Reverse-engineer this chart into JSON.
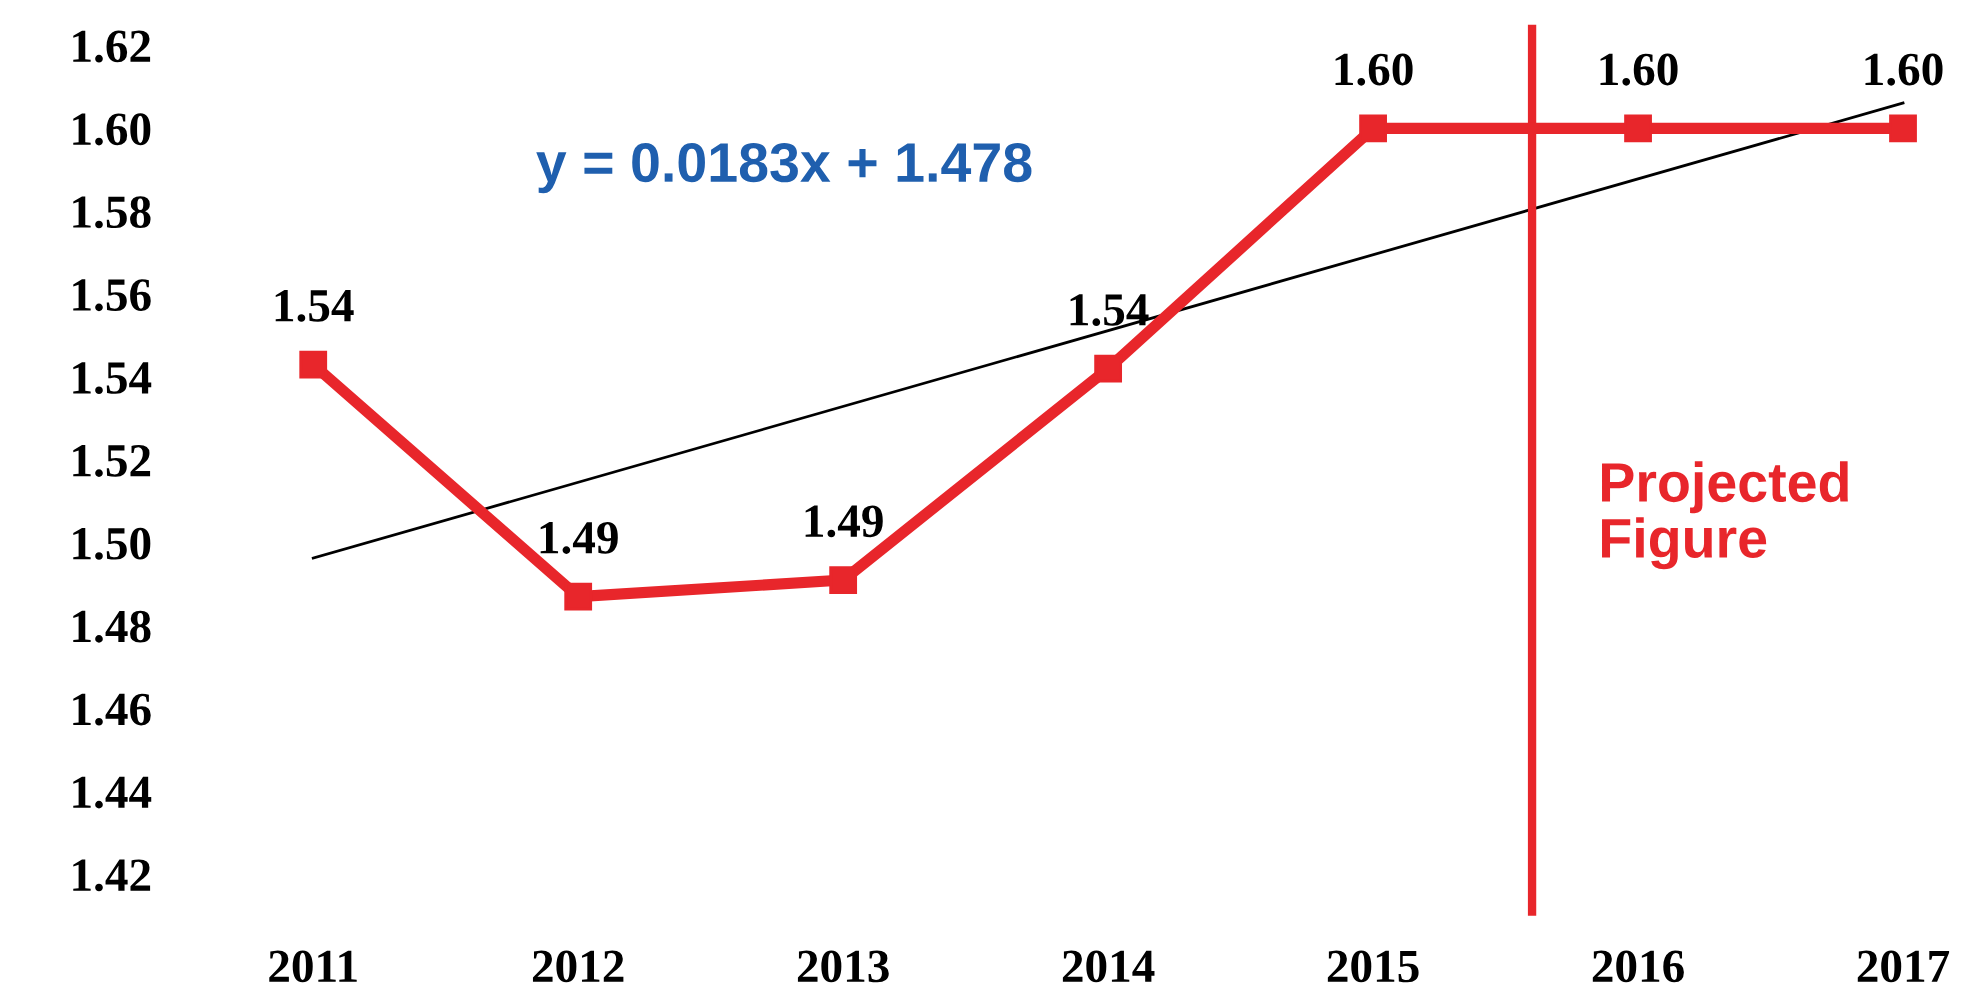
{
  "chart_data": {
    "type": "line",
    "x": [
      2011,
      2012,
      2013,
      2014,
      2015,
      2016,
      2017
    ],
    "series": [
      {
        "color": "#e8262b",
        "values": [
          1.543,
          1.487,
          1.491,
          1.542,
          1.6,
          1.6,
          1.6
        ],
        "value_labels": [
          "1.54",
          "1.49",
          "1.49",
          "1.54",
          "1.60",
          "1.60",
          "1.60"
        ],
        "marker": "square",
        "line_style": "solid"
      },
      {
        "color": "#000000",
        "x": [
          2011,
          2017
        ],
        "values": [
          1.4963,
          1.6061
        ],
        "marker": "none",
        "line_style": "solid"
      }
    ],
    "xlim": [
      2011,
      2017
    ],
    "xticks": [
      2011,
      2012,
      2013,
      2014,
      2015,
      2016,
      2017
    ],
    "ylim": [
      1.41,
      1.625
    ],
    "yticks": [
      {
        "value": 1.42,
        "label": "1.42"
      },
      {
        "value": 1.44,
        "label": "1.44"
      },
      {
        "value": 1.46,
        "label": "1.46"
      },
      {
        "value": 1.48,
        "label": "1.48"
      },
      {
        "value": 1.5,
        "label": "1.50"
      },
      {
        "value": 1.52,
        "label": "1.52"
      },
      {
        "value": 1.54,
        "label": "1.54"
      },
      {
        "value": 1.56,
        "label": "1.56"
      },
      {
        "value": 1.58,
        "label": "1.58"
      },
      {
        "value": 1.6,
        "label": "1.60"
      },
      {
        "value": 1.62,
        "label": "1.62"
      }
    ],
    "ref_lines": [
      {
        "axis": "x",
        "value": 2015.6,
        "label": "Projected\nFigure",
        "color": "#e8262b",
        "line_style": "solid"
      }
    ],
    "annotations": [
      "y = 0.0183x + 1.478"
    ],
    "grid": false,
    "legend": false
  }
}
